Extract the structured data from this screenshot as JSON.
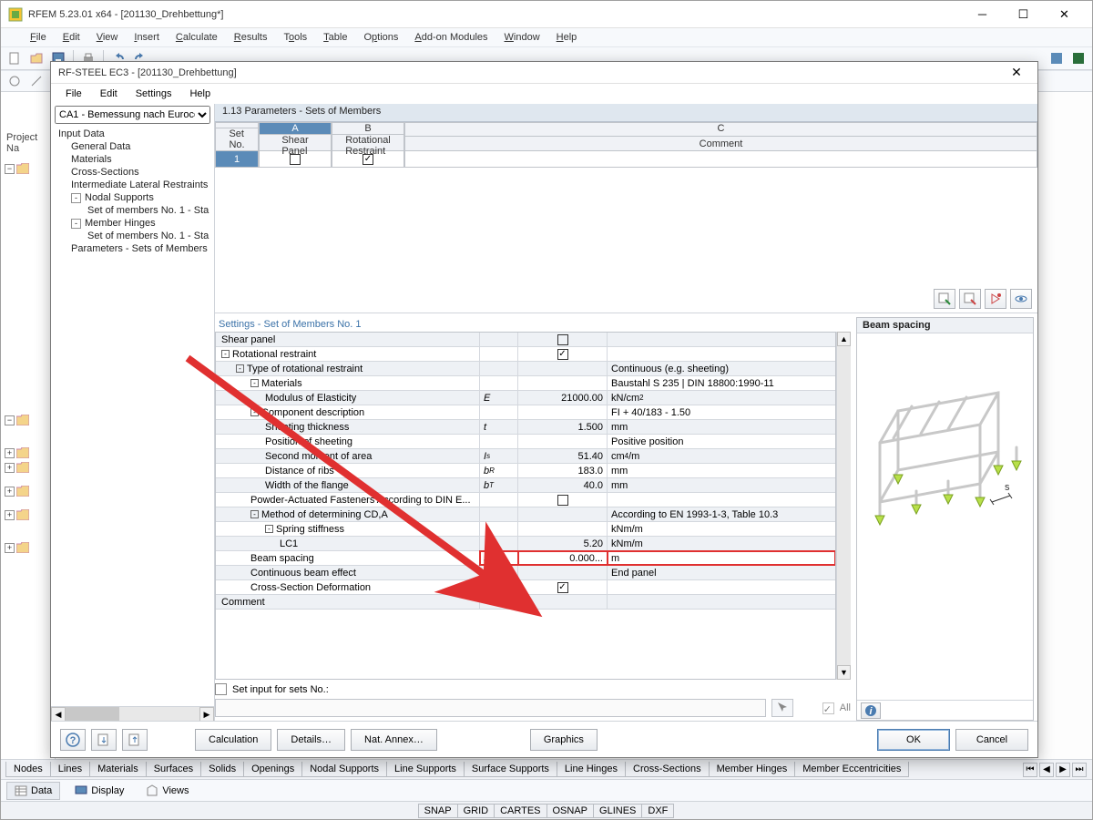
{
  "outer": {
    "title": "RFEM 5.23.01 x64 - [201130_Drehbettung*]",
    "menus": [
      "File",
      "Edit",
      "View",
      "Insert",
      "Calculate",
      "Results",
      "Tools",
      "Table",
      "Options",
      "Add-on Modules",
      "Window",
      "Help"
    ],
    "left_label": "Project Na",
    "footer_tabs": [
      "Data",
      "Display",
      "Views"
    ],
    "bottom_tabs": [
      "Nodes",
      "Lines",
      "Materials",
      "Surfaces",
      "Solids",
      "Openings",
      "Nodal Supports",
      "Line Supports",
      "Surface Supports",
      "Line Hinges",
      "Cross-Sections",
      "Member Hinges",
      "Member Eccentricities"
    ],
    "snap_bar": [
      "SNAP",
      "GRID",
      "CARTES",
      "OSNAP",
      "GLINES",
      "DXF"
    ]
  },
  "modal": {
    "title": "RF-STEEL EC3 - [201130_Drehbettung]",
    "menus": [
      "File",
      "Edit",
      "Settings",
      "Help"
    ],
    "combo": "CA1 - Bemessung nach Eurococ",
    "tree": [
      {
        "t": "Input Data",
        "lvl": 0
      },
      {
        "t": "General Data",
        "lvl": 1
      },
      {
        "t": "Materials",
        "lvl": 1
      },
      {
        "t": "Cross-Sections",
        "lvl": 1
      },
      {
        "t": "Intermediate Lateral Restraints",
        "lvl": 1
      },
      {
        "t": "Nodal Supports",
        "lvl": 1,
        "exp": "-"
      },
      {
        "t": "Set of members No. 1 - Sta",
        "lvl": 2
      },
      {
        "t": "Member Hinges",
        "lvl": 1,
        "exp": "-"
      },
      {
        "t": "Set of members No. 1 - Sta",
        "lvl": 2
      },
      {
        "t": "Parameters - Sets of Members",
        "lvl": 1
      }
    ],
    "main_header": "1.13 Parameters - Sets of Members",
    "upper": {
      "cols": {
        "set": "Set\nNo.",
        "a": "A",
        "b": "B",
        "c": "C",
        "a_lbl": "Shear\nPanel",
        "b_lbl": "Rotational\nRestraint",
        "c_lbl": "Comment"
      },
      "row": {
        "no": "1",
        "a": false,
        "b": true,
        "comment": ""
      }
    },
    "settings_title": "Settings - Set of Members No. 1",
    "rows": [
      {
        "label": "Shear panel",
        "indent": 0,
        "val_chk": false
      },
      {
        "label": "Rotational restraint",
        "indent": 0,
        "exp": "-",
        "val_chk": true
      },
      {
        "label": "Type of rotational restraint",
        "indent": 1,
        "exp": "-",
        "unit": "Continuous (e.g. sheeting)"
      },
      {
        "label": "Materials",
        "indent": 2,
        "exp": "-",
        "unit": "Baustahl S 235 | DIN 18800:1990-11"
      },
      {
        "label": "Modulus of Elasticity",
        "indent": 3,
        "sym": "E",
        "val": "21000.00",
        "unit": "kN/cm²"
      },
      {
        "label": "Component description",
        "indent": 2,
        "exp": "-",
        "unit": "FI + 40/183 - 1.50"
      },
      {
        "label": "Sheeting thickness",
        "indent": 3,
        "sym": "t",
        "val": "1.500",
        "unit": "mm"
      },
      {
        "label": "Position of sheeting",
        "indent": 3,
        "unit": "Positive position"
      },
      {
        "label": "Second moment of area",
        "indent": 3,
        "sym": "Iₛ",
        "val": "51.40",
        "unit": "cm⁴/m"
      },
      {
        "label": "Distance of ribs",
        "indent": 3,
        "sym": "bR",
        "val": "183.0",
        "unit": "mm"
      },
      {
        "label": "Width of the flange",
        "indent": 3,
        "sym": "bT",
        "val": "40.0",
        "unit": "mm"
      },
      {
        "label": "Powder-Actuated Fasteners According to DIN E...",
        "indent": 2,
        "val_chk": false
      },
      {
        "label": "Method of determining CD,A",
        "indent": 2,
        "exp": "-",
        "unit": "According to EN 1993-1-3, Table 10.3"
      },
      {
        "label": "Spring stiffness",
        "indent": 3,
        "exp": "-",
        "unit": "kNm/m"
      },
      {
        "label": "LC1",
        "indent": 4,
        "val": "5.20",
        "unit": "kNm/m"
      },
      {
        "label": "Beam spacing",
        "indent": 2,
        "sym": "s",
        "val": "0.000...",
        "unit": "m",
        "hl": true
      },
      {
        "label": "Continuous beam effect",
        "indent": 2,
        "unit": "End panel"
      },
      {
        "label": "Cross-Section Deformation",
        "indent": 2,
        "sym": "CD,B",
        "val_chk": true
      },
      {
        "label": "Comment",
        "indent": 0
      }
    ],
    "set_input_label": "Set input for sets No.:",
    "all_label": "All",
    "preview_title": "Beam spacing",
    "buttons": {
      "calc": "Calculation",
      "details": "Details…",
      "nat": "Nat. Annex…",
      "graphics": "Graphics",
      "ok": "OK",
      "cancel": "Cancel"
    }
  },
  "colors": {
    "arrow": "#e03030",
    "header_blue": "#5b8bb8"
  }
}
